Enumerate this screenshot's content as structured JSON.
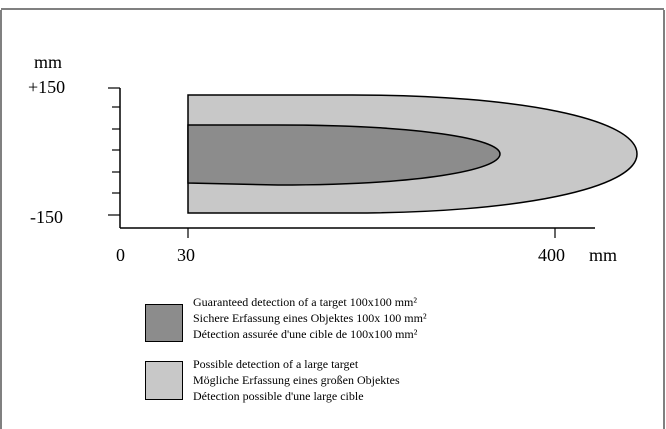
{
  "diagram": {
    "y_unit": "mm",
    "y_top_label": "+150",
    "y_bottom_label": "-150",
    "x_labels": [
      "0",
      "30",
      "400"
    ],
    "x_unit": "mm",
    "colors": {
      "guaranteed": "#8c8c8c",
      "possible": "#c8c8c8",
      "line": "#000000"
    }
  },
  "legend": {
    "guaranteed": [
      "Guaranteed detection of a target 100x100 mm²",
      "Sichere Erfassung eines Objektes 100x 100 mm²",
      "Détection assurée d'une cible de 100x100 mm²"
    ],
    "possible": [
      "Possible detection of a large target",
      "Mögliche Erfassung eines  großen Objektes",
      "Détection possible d'une large cible"
    ]
  }
}
